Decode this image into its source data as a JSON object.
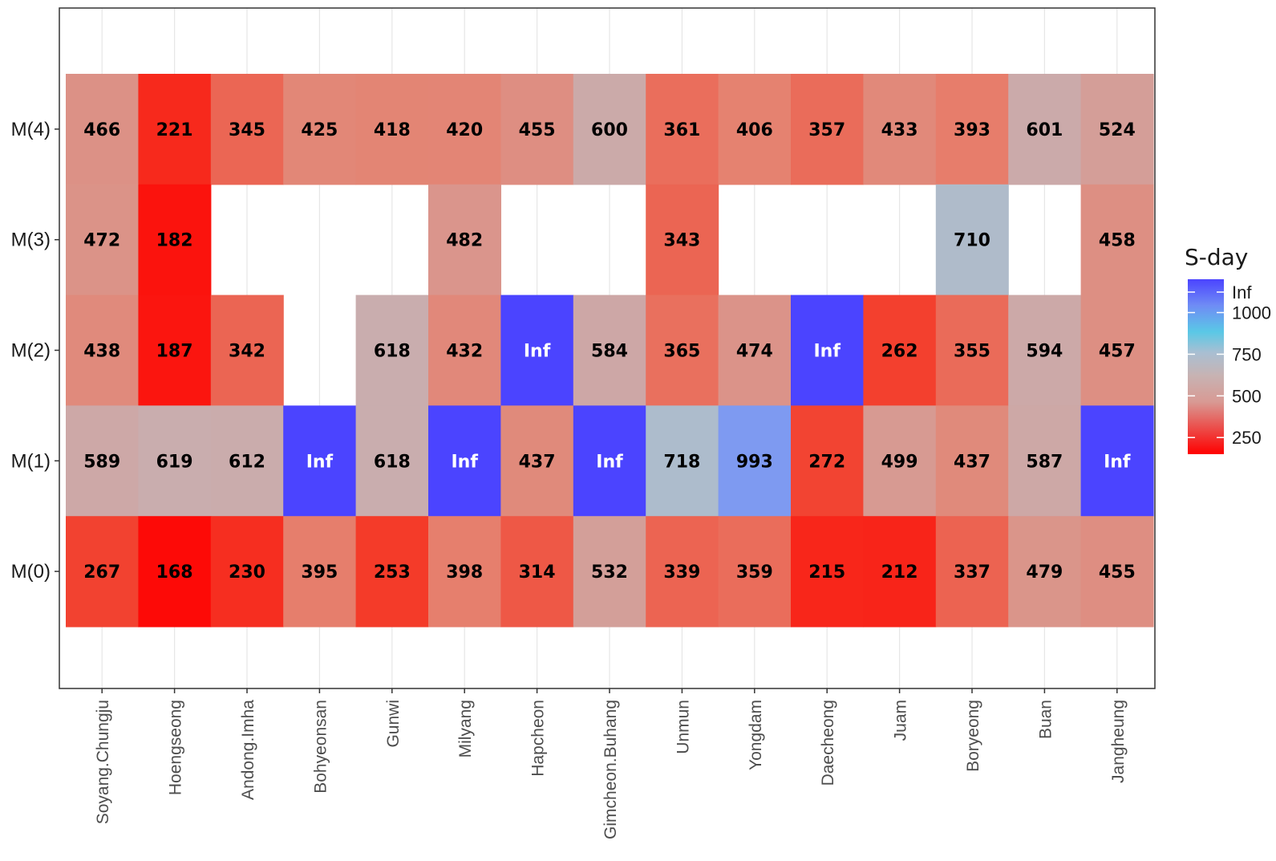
{
  "chart_data": {
    "type": "heatmap",
    "title": "",
    "xlabel": "",
    "ylabel": "",
    "x_categories": [
      "Soyang.Chungju",
      "Hoengseong",
      "Andong.Imha",
      "Bohyeonsan",
      "Gunwi",
      "Milyang",
      "Hapcheon",
      "Gimcheon.Buhang",
      "Unmun",
      "Yongdam",
      "Daecheong",
      "Juam",
      "Boryeong",
      "Buan",
      "Jangheung"
    ],
    "y_categories": [
      "M(4)",
      "M(3)",
      "M(2)",
      "M(1)",
      "M(0)"
    ],
    "values": [
      [
        "466",
        "221",
        "345",
        "425",
        "418",
        "420",
        "455",
        "600",
        "361",
        "406",
        "357",
        "433",
        "393",
        "601",
        "524"
      ],
      [
        "472",
        "182",
        null,
        null,
        null,
        "482",
        null,
        null,
        "343",
        null,
        null,
        null,
        "710",
        null,
        "458"
      ],
      [
        "438",
        "187",
        "342",
        null,
        "618",
        "432",
        "Inf",
        "584",
        "365",
        "474",
        "Inf",
        "262",
        "355",
        "594",
        "457"
      ],
      [
        "589",
        "619",
        "612",
        "Inf",
        "618",
        "Inf",
        "437",
        "Inf",
        "718",
        "993",
        "272",
        "499",
        "437",
        "587",
        "Inf"
      ],
      [
        "267",
        "168",
        "230",
        "395",
        "253",
        "398",
        "314",
        "532",
        "339",
        "359",
        "215",
        "212",
        "337",
        "479",
        "455"
      ]
    ],
    "legend": {
      "title": "S-day",
      "ticks": [
        {
          "label": "Inf",
          "value": 1200
        },
        {
          "label": "1000",
          "value": 1000
        },
        {
          "label": "750",
          "value": 750
        },
        {
          "label": "500",
          "value": 500
        },
        {
          "label": "250",
          "value": 250
        }
      ],
      "range": [
        150,
        1200
      ],
      "colors": {
        "low": "#ff0000",
        "mid": "#c7b3b3",
        "midhigh": "#a9bfd2",
        "cyan": "#5ac8e6",
        "high": "#4b44ff"
      },
      "placement": "right"
    },
    "grid": true
  }
}
